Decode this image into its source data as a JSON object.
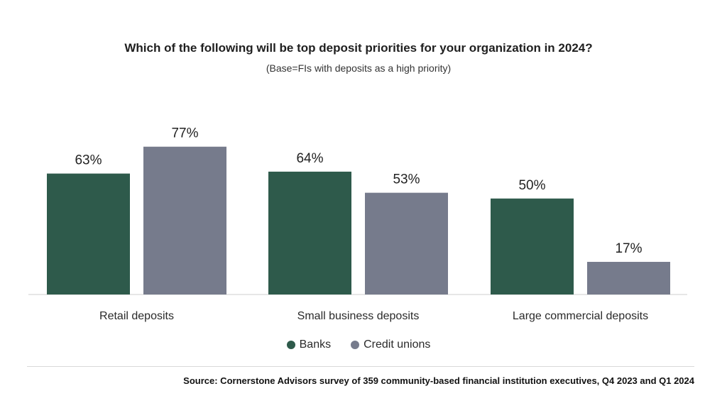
{
  "chart_data": {
    "type": "bar",
    "title": "Which of the following will be top deposit priorities for your organization in 2024?",
    "subtitle": "(Base=FIs with deposits as a high priority)",
    "categories": [
      "Retail deposits",
      "Small business deposits",
      "Large commercial deposits"
    ],
    "series": [
      {
        "name": "Banks",
        "values": [
          63,
          64,
          50
        ],
        "labels": [
          "63%",
          "64%",
          "50%"
        ],
        "color": "#2e5a4b"
      },
      {
        "name": "Credit unions",
        "values": [
          77,
          53,
          17
        ],
        "labels": [
          "77%",
          "53%",
          "17%"
        ],
        "color": "#767b8c"
      }
    ],
    "ylim": [
      0,
      100
    ],
    "grid": false,
    "legend_position": "bottom"
  },
  "source": "Source: Cornerstone Advisors survey of 359 community-based financial institution executives, Q4 2023 and Q1 2024"
}
